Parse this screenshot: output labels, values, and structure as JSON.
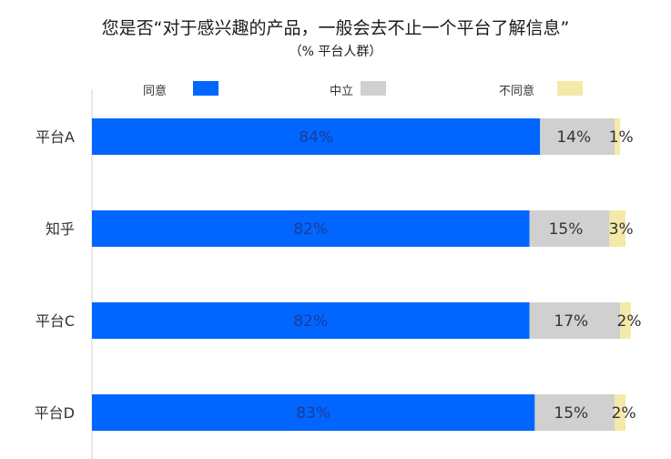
{
  "chart_data": {
    "type": "bar",
    "orientation": "horizontal",
    "stacked": true,
    "title": "您是否“对于感兴趣的产品，一般会去不止一个平台了解信息”",
    "subtitle": "（% 平台人群）",
    "categories": [
      "平台A",
      "知乎",
      "平台C",
      "平台D"
    ],
    "series": [
      {
        "name": "同意",
        "color": "#0066ff",
        "values": [
          84,
          82,
          82,
          83
        ],
        "labels": [
          "84%",
          "82%",
          "82%",
          "83%"
        ]
      },
      {
        "name": "中立",
        "color": "#d0d0d0",
        "values": [
          14,
          15,
          17,
          15
        ],
        "labels": [
          "14%",
          "15%",
          "17%",
          "15%"
        ]
      },
      {
        "name": "不同意",
        "color": "#f4e9a8",
        "values": [
          1,
          3,
          2,
          2
        ],
        "labels": [
          "1%",
          "3%",
          "2%",
          "2%"
        ]
      }
    ],
    "xlim": [
      0,
      100
    ],
    "legend_position": "top",
    "grid": false
  }
}
